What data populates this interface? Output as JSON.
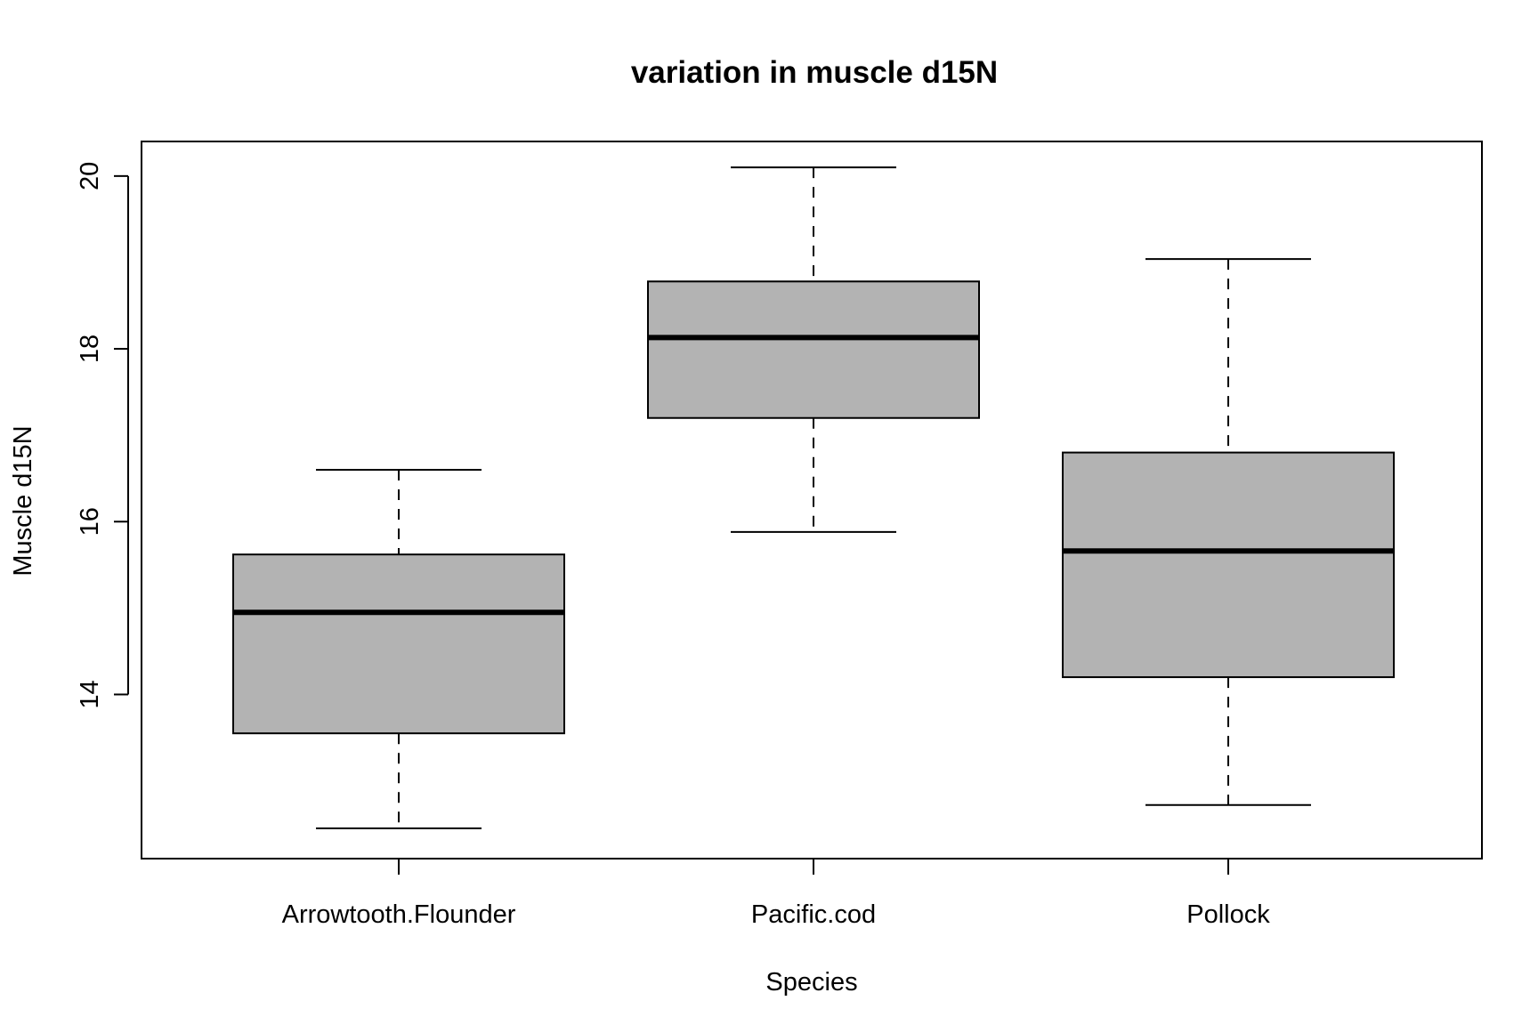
{
  "chart_data": {
    "type": "box",
    "title": "variation in muscle d15N",
    "xlabel": "Species",
    "ylabel": "Muscle d15N",
    "categories": [
      "Arrowtooth.Flounder",
      "Pacific.cod",
      "Pollock"
    ],
    "boxes": [
      {
        "category": "Arrowtooth.Flounder",
        "whisker_low": 12.45,
        "q1": 13.55,
        "median": 14.95,
        "q3": 15.62,
        "whisker_high": 16.6
      },
      {
        "category": "Pacific.cod",
        "whisker_low": 15.88,
        "q1": 17.2,
        "median": 18.13,
        "q3": 18.78,
        "whisker_high": 20.1
      },
      {
        "category": "Pollock",
        "whisker_low": 12.72,
        "q1": 14.2,
        "median": 15.66,
        "q3": 16.8,
        "whisker_high": 19.04
      }
    ],
    "ylim": [
      12.1,
      20.4
    ],
    "yticks": [
      "14",
      "16",
      "18",
      "20"
    ],
    "box_fill": "#b3b3b3",
    "grid": false,
    "legend": "none"
  }
}
